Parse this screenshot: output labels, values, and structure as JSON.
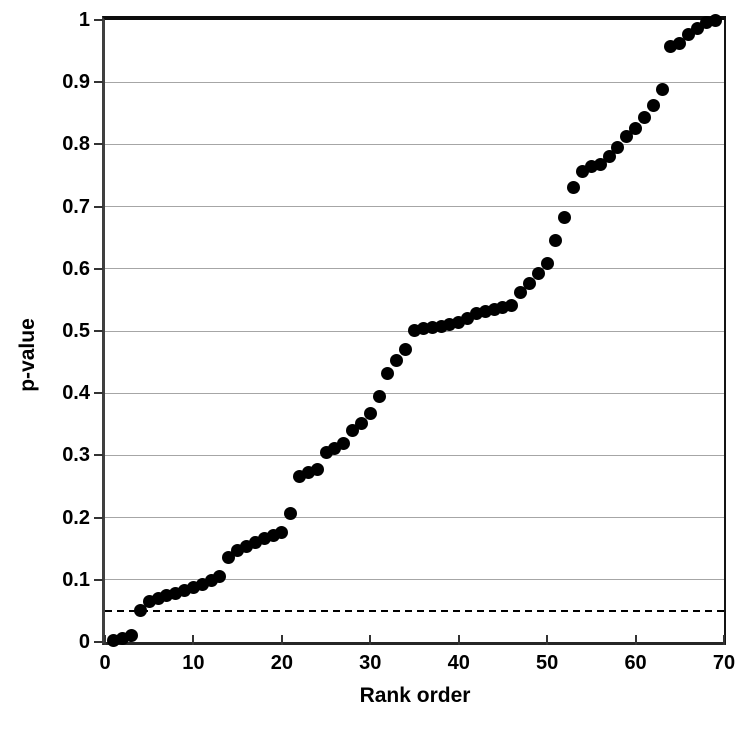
{
  "chart_data": {
    "type": "scatter",
    "title": "",
    "xlabel": "Rank order",
    "ylabel": "p-value",
    "xlim": [
      0,
      70
    ],
    "ylim": [
      0,
      1
    ],
    "grid": "horizontal-only",
    "legend": "none",
    "x_tick_values": [
      0,
      10,
      20,
      30,
      40,
      50,
      60,
      70
    ],
    "x_tick_labels": [
      "0",
      "10",
      "20",
      "30",
      "40",
      "50",
      "60",
      "70"
    ],
    "y_tick_values": [
      0,
      0.1,
      0.2,
      0.3,
      0.4,
      0.5,
      0.6,
      0.7,
      0.8,
      0.9,
      1
    ],
    "y_tick_labels": [
      "0",
      "0.1",
      "0.2",
      "0.3",
      "0.4",
      "0.5",
      "0.6",
      "0.7",
      "0.8",
      "0.9",
      "1"
    ],
    "reference_line": {
      "y": 0.05,
      "style": "dashed",
      "color": "#000000"
    },
    "series": [
      {
        "marker": "filled-circle",
        "color": "#000000",
        "x": [
          1,
          2,
          3,
          4,
          5,
          6,
          7,
          8,
          9,
          10,
          11,
          12,
          13,
          14,
          15,
          16,
          17,
          18,
          19,
          20,
          21,
          22,
          23,
          24,
          25,
          26,
          27,
          28,
          29,
          30,
          31,
          32,
          33,
          34,
          35,
          36,
          37,
          38,
          39,
          40,
          41,
          42,
          43,
          44,
          45,
          46,
          47,
          48,
          49,
          50,
          51,
          52,
          53,
          54,
          55,
          56,
          57,
          58,
          59,
          60,
          61,
          62,
          63,
          64,
          65,
          66,
          67,
          68,
          69
        ],
        "y": [
          0.003,
          0.006,
          0.01,
          0.05,
          0.065,
          0.07,
          0.074,
          0.078,
          0.082,
          0.087,
          0.093,
          0.099,
          0.105,
          0.136,
          0.147,
          0.153,
          0.16,
          0.166,
          0.172,
          0.176,
          0.206,
          0.266,
          0.272,
          0.278,
          0.304,
          0.311,
          0.319,
          0.34,
          0.351,
          0.367,
          0.395,
          0.431,
          0.452,
          0.47,
          0.501,
          0.504,
          0.506,
          0.508,
          0.511,
          0.514,
          0.52,
          0.528,
          0.531,
          0.534,
          0.537,
          0.541,
          0.562,
          0.576,
          0.592,
          0.608,
          0.645,
          0.682,
          0.73,
          0.757,
          0.764,
          0.768,
          0.78,
          0.795,
          0.812,
          0.826,
          0.843,
          0.862,
          0.888,
          0.957,
          0.963,
          0.976,
          0.986,
          0.996,
          1.0
        ]
      }
    ]
  },
  "colors": {
    "background": "#ffffff",
    "marker": "#000000",
    "gridline": "#a6a6a6",
    "tick": "#333333",
    "text": "#000000",
    "reference_line": "#000000"
  }
}
